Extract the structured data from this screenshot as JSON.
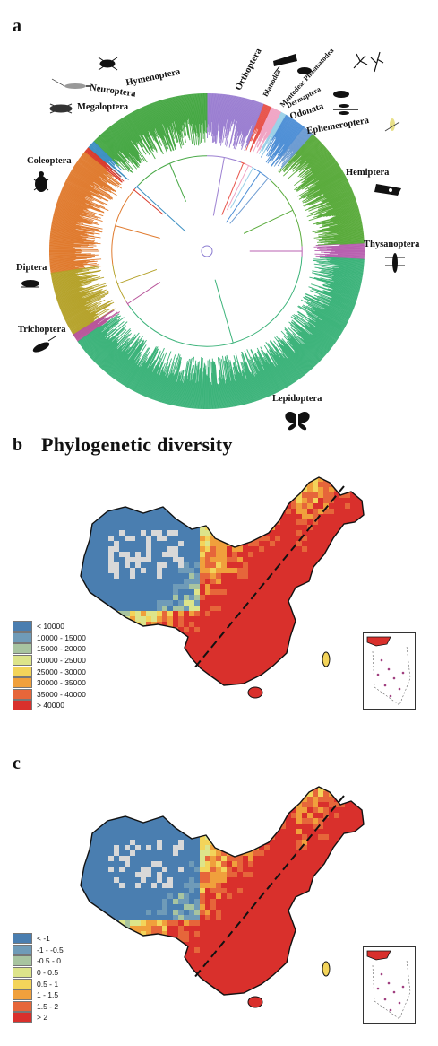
{
  "panel_a": {
    "letter": "a",
    "orders": [
      {
        "name": "Hymenoptera",
        "color": "#47a845"
      },
      {
        "name": "Neuroptera",
        "color": "#3b8fc2"
      },
      {
        "name": "Megaloptera",
        "color": "#d93a2b"
      },
      {
        "name": "Coleoptera",
        "color": "#e07b2f"
      },
      {
        "name": "Diptera",
        "color": "#b5a22a"
      },
      {
        "name": "Trichoptera",
        "color": "#b8559a"
      },
      {
        "name": "Lepidoptera",
        "color": "#3cb37a"
      },
      {
        "name": "Thysanoptera",
        "color": "#b861b0"
      },
      {
        "name": "Hemiptera",
        "color": "#5aab3c"
      },
      {
        "name": "Ephemeroptera",
        "color": "#6c9bd2"
      },
      {
        "name": "Odonata",
        "color": "#4e8fd6"
      },
      {
        "name": "Dermaptera",
        "color": "#9ad0e8"
      },
      {
        "name": "Mantodea; Phasmatodea",
        "color": "#f0a4c4"
      },
      {
        "name": "Blattodea",
        "color": "#e8534a"
      },
      {
        "name": "Orthoptera",
        "color": "#9b7fd1"
      }
    ]
  },
  "panel_b": {
    "letter": "b",
    "title": "Phylogenetic diversity",
    "legend": [
      {
        "label": "< 10000",
        "color": "#4a7eb0"
      },
      {
        "label": "10000 - 15000",
        "color": "#6f9bb8"
      },
      {
        "label": "15000 - 20000",
        "color": "#a8c4a0"
      },
      {
        "label": "20000 - 25000",
        "color": "#dde48a"
      },
      {
        "label": "25000 - 30000",
        "color": "#f3d45a"
      },
      {
        "label": "30000 - 35000",
        "color": "#f0a03c"
      },
      {
        "label": "35000 - 40000",
        "color": "#e6663a"
      },
      {
        "label": "> 40000",
        "color": "#d9302c"
      }
    ]
  },
  "panel_c": {
    "letter": "c",
    "legend": [
      {
        "label": "< -1",
        "color": "#4a7eb0"
      },
      {
        "label": "-1 - -0.5",
        "color": "#6f9bb8"
      },
      {
        "label": "-0.5 - 0",
        "color": "#a8c4a0"
      },
      {
        "label": "0 - 0.5",
        "color": "#dde48a"
      },
      {
        "label": "0.5 - 1",
        "color": "#f3d45a"
      },
      {
        "label": "1 - 1.5",
        "color": "#f0a03c"
      },
      {
        "label": "1.5 - 2",
        "color": "#e6663a"
      },
      {
        "label": "> 2",
        "color": "#d9302c"
      }
    ]
  }
}
